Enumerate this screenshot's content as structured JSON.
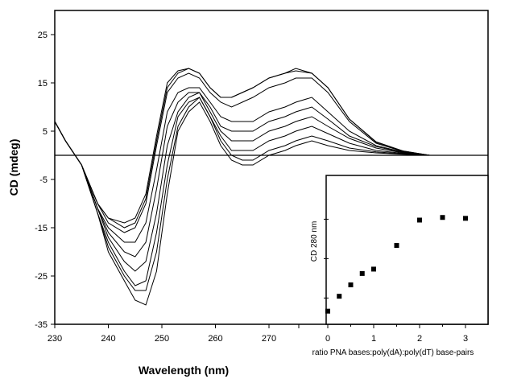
{
  "chart_data": [
    {
      "type": "line",
      "title": "",
      "xlabel": "Wavelength (nm)",
      "ylabel": "CD (mdeg)",
      "xlim": [
        230,
        310
      ],
      "ylim": [
        -35,
        30
      ],
      "x_ticks": [
        230,
        240,
        250,
        260,
        270
      ],
      "y_ticks": [
        25,
        15,
        5,
        -5,
        -15,
        -25,
        -35
      ],
      "grid": false,
      "legend": "none",
      "zero_line": true,
      "series": [
        {
          "x": [
            230,
            232,
            235,
            238,
            240,
            243,
            245,
            247,
            249,
            251,
            253,
            255,
            257,
            259,
            261,
            263,
            265,
            267,
            270,
            273,
            275,
            278,
            281,
            285,
            290,
            295,
            300,
            305,
            310
          ],
          "y": [
            7,
            3,
            -2,
            -12,
            -20,
            -26,
            -30,
            -31,
            -24,
            -8,
            5,
            9,
            11,
            7,
            2,
            -1,
            -2,
            -2,
            0,
            1,
            2,
            3,
            2,
            1,
            0.5,
            0.2,
            0,
            0,
            0
          ]
        },
        {
          "x": [
            230,
            232,
            235,
            238,
            240,
            243,
            245,
            247,
            249,
            251,
            253,
            255,
            257,
            259,
            261,
            263,
            265,
            267,
            270,
            273,
            275,
            278,
            281,
            285,
            290,
            295,
            300,
            305,
            310
          ],
          "y": [
            7,
            3,
            -2,
            -12,
            -19,
            -25,
            -28,
            -28,
            -20,
            -5,
            6,
            10,
            12,
            8,
            3,
            0,
            -1,
            -1,
            1,
            2,
            3,
            4,
            3,
            1.5,
            0.7,
            0.3,
            0,
            0,
            0
          ]
        },
        {
          "x": [
            230,
            232,
            235,
            238,
            240,
            243,
            245,
            247,
            249,
            251,
            253,
            255,
            257,
            259,
            261,
            263,
            265,
            267,
            270,
            273,
            275,
            278,
            281,
            285,
            290,
            295,
            300,
            305,
            310
          ],
          "y": [
            7,
            3,
            -2,
            -12,
            -18,
            -24,
            -27,
            -26,
            -16,
            -2,
            8,
            11,
            12,
            8,
            4,
            1,
            1,
            1,
            3,
            4,
            5,
            6,
            4.5,
            2.5,
            1,
            0.4,
            0,
            0,
            0
          ]
        },
        {
          "x": [
            230,
            232,
            235,
            238,
            240,
            243,
            245,
            247,
            249,
            251,
            253,
            255,
            257,
            259,
            261,
            263,
            265,
            267,
            270,
            273,
            275,
            278,
            281,
            285,
            290,
            295,
            300,
            305,
            310
          ],
          "y": [
            7,
            3,
            -2,
            -11,
            -17,
            -22,
            -24,
            -22,
            -12,
            2,
            9,
            12,
            13,
            9,
            5,
            3,
            3,
            3,
            5,
            6,
            7,
            8,
            6,
            3.5,
            1.5,
            0.5,
            0,
            0,
            0
          ]
        },
        {
          "x": [
            230,
            232,
            235,
            238,
            240,
            243,
            245,
            247,
            249,
            251,
            253,
            255,
            257,
            259,
            261,
            263,
            265,
            267,
            270,
            273,
            275,
            278,
            281,
            285,
            290,
            295,
            300,
            305,
            310
          ],
          "y": [
            7,
            3,
            -2,
            -11,
            -16,
            -20,
            -21,
            -18,
            -7,
            6,
            11,
            13,
            13,
            10,
            6,
            5,
            5,
            5,
            7,
            8,
            9,
            10,
            7.5,
            4,
            1.8,
            0.6,
            0,
            0,
            0
          ]
        },
        {
          "x": [
            230,
            232,
            235,
            238,
            240,
            243,
            245,
            247,
            249,
            251,
            253,
            255,
            257,
            259,
            261,
            263,
            265,
            267,
            270,
            273,
            275,
            278,
            281,
            285,
            290,
            295,
            300,
            305,
            310
          ],
          "y": [
            7,
            3,
            -2,
            -11,
            -15,
            -18,
            -18,
            -14,
            -3,
            9,
            13,
            14,
            14,
            11,
            8,
            7,
            7,
            7,
            9,
            10,
            11,
            12,
            9,
            5,
            2,
            0.7,
            0,
            0,
            0
          ]
        },
        {
          "x": [
            230,
            232,
            235,
            238,
            240,
            243,
            245,
            247,
            249,
            251,
            253,
            255,
            257,
            259,
            261,
            263,
            265,
            267,
            270,
            273,
            275,
            278,
            281,
            285,
            290,
            295,
            300,
            305,
            310
          ],
          "y": [
            7,
            3,
            -2,
            -10,
            -14,
            -16,
            -15,
            -10,
            2,
            13,
            16,
            17,
            16,
            13,
            11,
            10,
            11,
            12,
            14,
            15,
            16,
            16,
            13,
            7,
            2.5,
            0.8,
            0,
            0,
            0
          ]
        },
        {
          "x": [
            230,
            232,
            235,
            238,
            240,
            243,
            245,
            247,
            249,
            251,
            253,
            255,
            257,
            259,
            261,
            263,
            265,
            267,
            270,
            273,
            275,
            278,
            281,
            285,
            290,
            295,
            300,
            305,
            310
          ],
          "y": [
            7,
            3,
            -2,
            -10,
            -13,
            -15,
            -14,
            -9,
            3,
            14,
            17,
            18,
            17,
            14,
            12,
            12,
            13,
            14,
            16,
            17,
            17.5,
            17,
            14,
            7.5,
            2.7,
            0.9,
            0,
            0,
            0
          ]
        },
        {
          "x": [
            230,
            232,
            235,
            238,
            240,
            243,
            245,
            247,
            249,
            251,
            253,
            255,
            257,
            259,
            261,
            263,
            265,
            267,
            270,
            273,
            275,
            278,
            281,
            285,
            290,
            295,
            300,
            305,
            310
          ],
          "y": [
            7,
            3,
            -2,
            -10,
            -13,
            -14,
            -13,
            -8,
            4,
            15,
            17.5,
            18,
            17,
            14,
            12,
            12,
            13,
            14,
            16,
            17,
            18,
            17,
            14,
            7.5,
            2.8,
            0.9,
            0,
            0,
            0
          ]
        }
      ]
    },
    {
      "type": "scatter",
      "title": "",
      "xlabel": "ratio PNA bases:poly(dA):poly(dT)  base-pairs",
      "ylabel": "CD 280 nm",
      "x_ticks": [
        0,
        1,
        2,
        3
      ],
      "xlim": [
        0,
        3.5
      ],
      "ylim": [
        0,
        17
      ],
      "points": [
        {
          "x": 0.0,
          "y": 1.5
        },
        {
          "x": 0.25,
          "y": 3.2
        },
        {
          "x": 0.5,
          "y": 4.5
        },
        {
          "x": 0.75,
          "y": 5.8
        },
        {
          "x": 1.0,
          "y": 6.3
        },
        {
          "x": 1.5,
          "y": 9.0
        },
        {
          "x": 2.0,
          "y": 11.9
        },
        {
          "x": 2.5,
          "y": 12.2
        },
        {
          "x": 3.0,
          "y": 12.1
        }
      ]
    }
  ]
}
